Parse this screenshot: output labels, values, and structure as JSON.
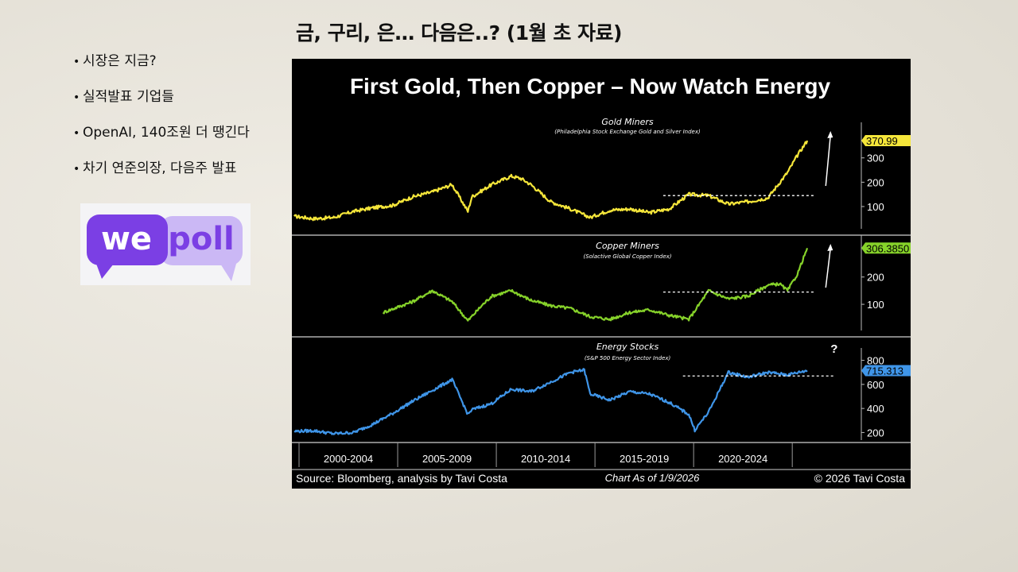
{
  "slide": {
    "title": "금, 구리, 은… 다음은..? (1월 초 자료)",
    "bullets": [
      "시장은 지금?",
      "실적발표 기업들",
      "OpenAI, 140조원 더 땡긴다",
      "차기 연준의장, 다음주 발표"
    ]
  },
  "logo": {
    "left": "we",
    "right": "poll",
    "brand_color": "#7b3fe4",
    "light_color": "#cbb8f5"
  },
  "chart_title": "First Gold, Then Copper – Now Watch Energy",
  "footer": {
    "source": "Source: Bloomberg, analysis by Tavi Costa",
    "as_of": "Chart As of 1/9/2026",
    "copyright": "© 2026 Tavi Costa"
  },
  "chart_data": [
    {
      "type": "line",
      "title": "Gold Miners",
      "subtitle": "(Philadelphia Stock Exchange Gold and Silver Index)",
      "color": "#f5e63a",
      "last_value_label": "370.99",
      "yticks": [
        100,
        200,
        300
      ],
      "ylim": [
        15,
        420
      ],
      "breakout_level": 145,
      "annotation": "arrow-up",
      "x": [
        2000,
        2001,
        2002,
        2003,
        2004,
        2005,
        2006,
        2007,
        2008,
        2008.8,
        2009,
        2010,
        2011,
        2011.5,
        2012,
        2013,
        2014,
        2015,
        2016,
        2017,
        2018,
        2019,
        2020,
        2021,
        2022,
        2023,
        2024,
        2025,
        2025.5,
        2026
      ],
      "values": [
        60,
        50,
        55,
        80,
        95,
        105,
        140,
        160,
        190,
        80,
        140,
        190,
        225,
        215,
        190,
        120,
        90,
        55,
        85,
        90,
        75,
        90,
        150,
        145,
        110,
        120,
        135,
        240,
        310,
        371
      ]
    },
    {
      "type": "line",
      "title": "Copper Miners",
      "subtitle": "(Solactive Global Copper Index)",
      "color": "#86d22a",
      "last_value_label": "306.3850",
      "yticks": [
        100,
        200
      ],
      "ylim": [
        10,
        330
      ],
      "breakout_level": 145,
      "annotation": "arrow-up",
      "x": [
        2004.5,
        2006,
        2007,
        2008,
        2008.8,
        2009.5,
        2010,
        2011,
        2012,
        2013,
        2014,
        2015,
        2016,
        2017,
        2018,
        2019,
        2020,
        2021,
        2022,
        2023,
        2024,
        2024.6,
        2025,
        2025.5,
        2026
      ],
      "values": [
        70,
        110,
        150,
        110,
        40,
        95,
        130,
        150,
        115,
        95,
        85,
        55,
        45,
        70,
        80,
        60,
        45,
        150,
        120,
        130,
        170,
        175,
        150,
        210,
        306
      ]
    },
    {
      "type": "line",
      "title": "Energy Stocks",
      "subtitle": "(S&P 500 Energy Sector Index)",
      "color": "#3f95e8",
      "last_value_label": "715.313",
      "yticks": [
        200,
        400,
        600,
        800
      ],
      "ylim": [
        150,
        850
      ],
      "breakout_level": 670,
      "annotation": "?",
      "x": [
        2000,
        2001,
        2002,
        2003,
        2004,
        2005,
        2006,
        2007,
        2008,
        2008.8,
        2009,
        2010,
        2011,
        2012,
        2013,
        2014,
        2014.7,
        2015,
        2016,
        2017,
        2018,
        2019,
        2020,
        2020.3,
        2021,
        2022,
        2023,
        2024,
        2025,
        2026
      ],
      "values": [
        210,
        215,
        190,
        200,
        270,
        360,
        460,
        550,
        640,
        350,
        390,
        440,
        560,
        540,
        620,
        700,
        720,
        520,
        470,
        540,
        520,
        450,
        350,
        220,
        370,
        700,
        660,
        700,
        680,
        715
      ]
    }
  ],
  "x_axis": {
    "periods": [
      "2000-2004",
      "2005-2009",
      "2010-2014",
      "2015-2019",
      "2020-2024"
    ],
    "xlim": [
      2000,
      2028.5
    ]
  }
}
